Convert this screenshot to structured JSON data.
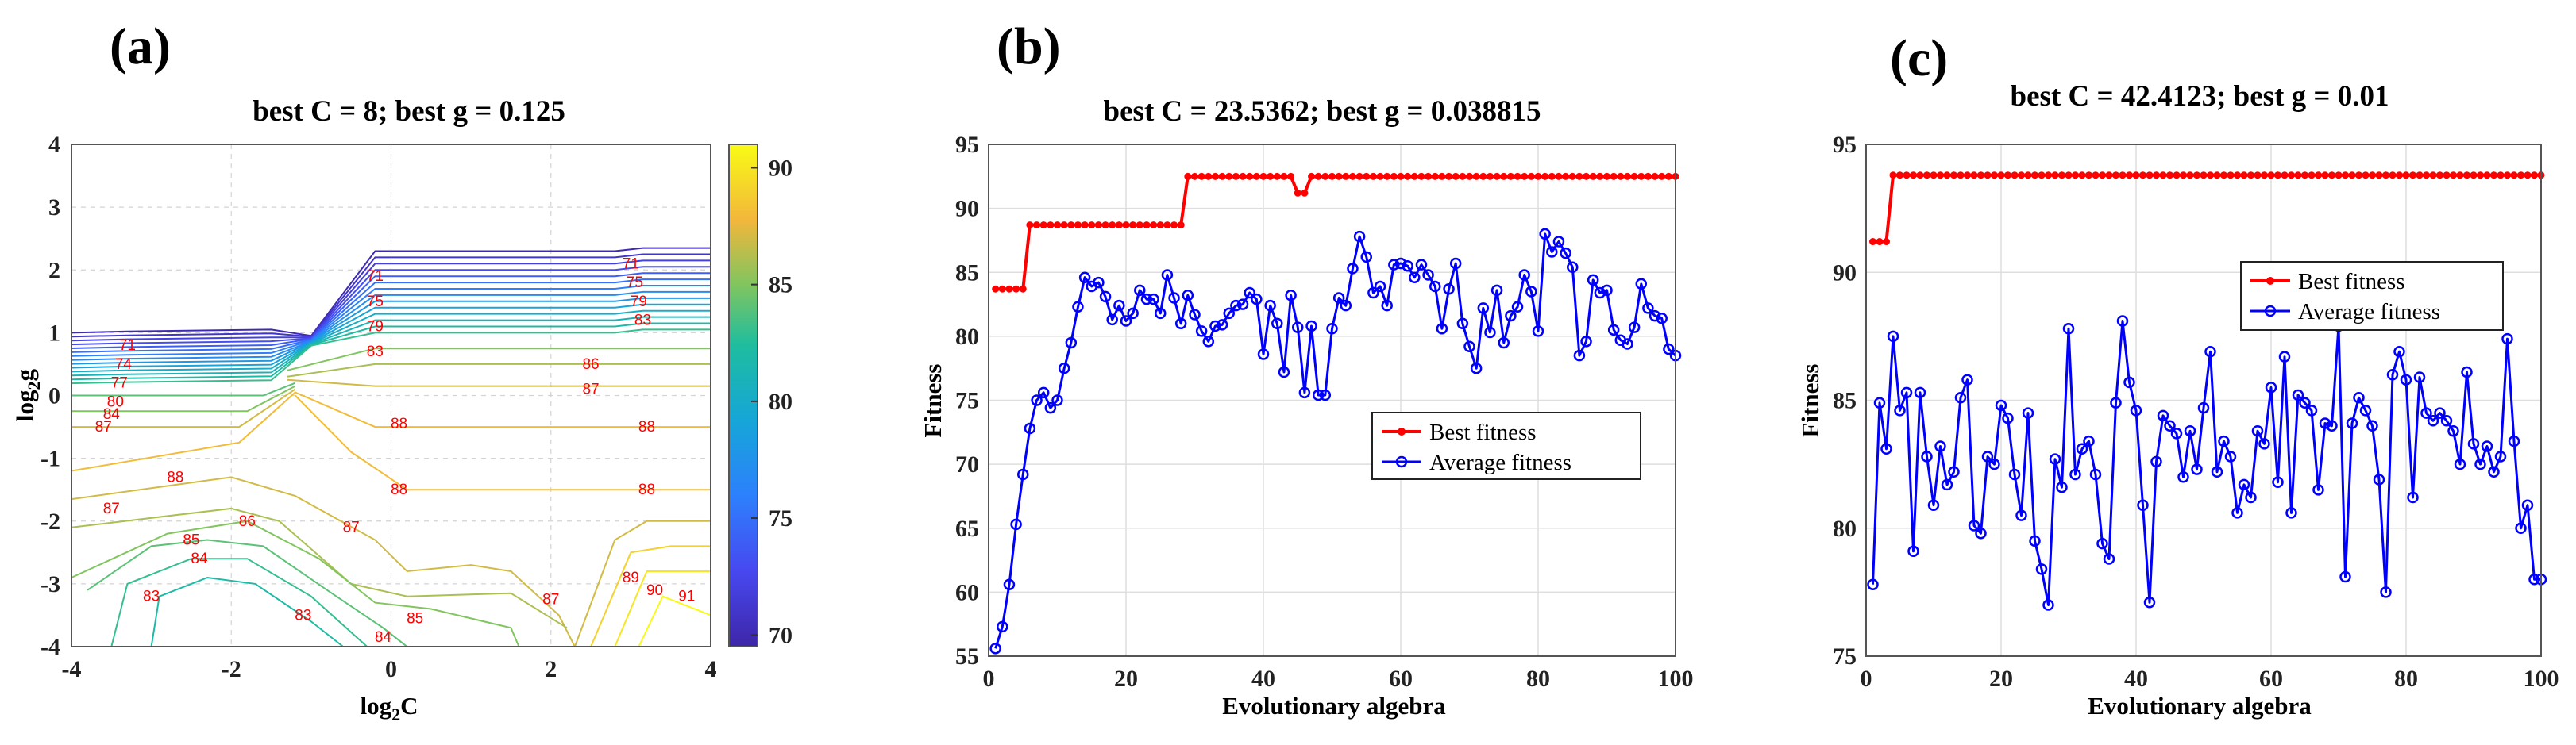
{
  "chart_data": [
    {
      "type": "contour",
      "panel": "(a)",
      "title": "best C = 8; best g = 0.125",
      "xlabel_base": "log",
      "xlabel_sub": "2",
      "xlabel_var": "C",
      "ylabel_base": "log",
      "ylabel_sub": "2",
      "ylabel_var": "g",
      "xlim": [
        -4,
        4
      ],
      "ylim": [
        -4,
        4
      ],
      "xticks": [
        -4,
        -2,
        0,
        2,
        4
      ],
      "yticks": [
        -4,
        -3,
        -2,
        -1,
        0,
        1,
        2,
        3,
        4
      ],
      "colorbar": {
        "range": [
          69.5,
          91
        ],
        "ticks": [
          70,
          75,
          80,
          85,
          90
        ]
      },
      "labeled_levels": [
        {
          "level": 83,
          "x": -3.0,
          "y": -3.2
        },
        {
          "level": 84,
          "x": -2.4,
          "y": -2.6
        },
        {
          "level": 85,
          "x": -2.5,
          "y": -2.3
        },
        {
          "level": 86,
          "x": -1.8,
          "y": -2.0
        },
        {
          "level": 87,
          "x": -3.5,
          "y": -1.8
        },
        {
          "level": 88,
          "x": -2.7,
          "y": -1.3
        },
        {
          "level": 87,
          "x": -3.6,
          "y": -0.5
        },
        {
          "level": 86,
          "x": 2.5,
          "y": 0.5
        },
        {
          "level": 87,
          "x": 2.5,
          "y": 0.1
        },
        {
          "level": 88,
          "x": 0.1,
          "y": -0.45
        },
        {
          "level": 88,
          "x": 3.2,
          "y": -0.5
        },
        {
          "level": 88,
          "x": 0.1,
          "y": -1.5
        },
        {
          "level": 88,
          "x": 3.2,
          "y": -1.5
        },
        {
          "level": 87,
          "x": -0.5,
          "y": -2.1
        },
        {
          "level": 85,
          "x": 0.3,
          "y": -3.55
        },
        {
          "level": 84,
          "x": -0.1,
          "y": -3.85
        },
        {
          "level": 83,
          "x": -1.1,
          "y": -3.5
        },
        {
          "level": 87,
          "x": 2.0,
          "y": -3.25
        },
        {
          "level": 89,
          "x": 3.0,
          "y": -2.9
        },
        {
          "level": 90,
          "x": 3.3,
          "y": -3.1
        },
        {
          "level": 91,
          "x": 3.7,
          "y": -3.2
        },
        {
          "level": 71,
          "x": -3.3,
          "y": 0.8
        },
        {
          "level": 74,
          "x": -3.35,
          "y": 0.5
        },
        {
          "level": 77,
          "x": -3.4,
          "y": 0.2
        },
        {
          "level": 80,
          "x": -3.45,
          "y": -0.1
        },
        {
          "level": 84,
          "x": -3.5,
          "y": -0.3
        },
        {
          "level": 71,
          "x": -0.2,
          "y": 1.9
        },
        {
          "level": 75,
          "x": -0.2,
          "y": 1.5
        },
        {
          "level": 79,
          "x": -0.2,
          "y": 1.1
        },
        {
          "level": 83,
          "x": -0.2,
          "y": 0.7
        },
        {
          "level": 71,
          "x": 3.0,
          "y": 2.1
        },
        {
          "level": 75,
          "x": 3.05,
          "y": 1.8
        },
        {
          "level": 79,
          "x": 3.1,
          "y": 1.5
        },
        {
          "level": 83,
          "x": 3.15,
          "y": 1.2
        }
      ]
    },
    {
      "type": "line",
      "panel": "(b)",
      "title": "best C = 23.5362; best g = 0.038815",
      "xlabel": "Evolutionary algebra",
      "ylabel": "Fitness",
      "xlim": [
        0,
        100
      ],
      "ylim": [
        55,
        95
      ],
      "xticks": [
        0,
        20,
        40,
        60,
        80,
        100
      ],
      "yticks": [
        55,
        60,
        65,
        70,
        75,
        80,
        85,
        90,
        95
      ],
      "legend": {
        "position": "right",
        "entries": [
          "Best fitness",
          "Average fitness"
        ]
      },
      "series": [
        {
          "name": "Best fitness",
          "color": "#ff0000",
          "marker": "dot",
          "x": [
            1,
            2,
            3,
            4,
            5,
            6,
            7,
            8,
            9,
            10,
            11,
            12,
            13,
            14,
            15,
            16,
            17,
            18,
            19,
            20,
            21,
            22,
            23,
            24,
            25,
            26,
            27,
            28,
            29,
            30,
            31,
            32,
            33,
            34,
            35,
            36,
            37,
            38,
            39,
            40,
            41,
            42,
            43,
            44,
            45,
            46,
            47,
            48,
            49,
            50,
            51,
            52,
            53,
            54,
            55,
            56,
            57,
            58,
            59,
            60,
            61,
            62,
            63,
            64,
            65,
            66,
            67,
            68,
            69,
            70,
            71,
            72,
            73,
            74,
            75,
            76,
            77,
            78,
            79,
            80,
            81,
            82,
            83,
            84,
            85,
            86,
            87,
            88,
            89,
            90,
            91,
            92,
            93,
            94,
            95,
            96,
            97,
            98,
            99,
            100
          ],
          "values": [
            83.7,
            83.7,
            83.7,
            83.7,
            83.7,
            88.7,
            88.7,
            88.7,
            88.7,
            88.7,
            88.7,
            88.7,
            88.7,
            88.7,
            88.7,
            88.7,
            88.7,
            88.7,
            88.7,
            88.7,
            88.7,
            88.7,
            88.7,
            88.7,
            88.7,
            88.7,
            88.7,
            88.7,
            92.5,
            92.5,
            92.5,
            92.5,
            92.5,
            92.5,
            92.5,
            92.5,
            92.5,
            92.5,
            92.5,
            92.5,
            92.5,
            92.5,
            92.5,
            92.5,
            91.2,
            91.2,
            92.5,
            92.5,
            92.5,
            92.5,
            92.5,
            92.5,
            92.5,
            92.5,
            92.5,
            92.5,
            92.5,
            92.5,
            92.5,
            92.5,
            92.5,
            92.5,
            92.5,
            92.5,
            92.5,
            92.5,
            92.5,
            92.5,
            92.5,
            92.5,
            92.5,
            92.5,
            92.5,
            92.5,
            92.5,
            92.5,
            92.5,
            92.5,
            92.5,
            92.5,
            92.5,
            92.5,
            92.5,
            92.5,
            92.5,
            92.5,
            92.5,
            92.5,
            92.5,
            92.5,
            92.5,
            92.5,
            92.5,
            92.5,
            92.5,
            92.5,
            92.5,
            92.5,
            92.5,
            92.5
          ]
        },
        {
          "name": "Average fitness",
          "color": "#0000ff",
          "marker": "circle",
          "x": [
            1,
            2,
            3,
            4,
            5,
            6,
            7,
            8,
            9,
            10,
            11,
            12,
            13,
            14,
            15,
            16,
            17,
            18,
            19,
            20,
            21,
            22,
            23,
            24,
            25,
            26,
            27,
            28,
            29,
            30,
            31,
            32,
            33,
            34,
            35,
            36,
            37,
            38,
            39,
            40,
            41,
            42,
            43,
            44,
            45,
            46,
            47,
            48,
            49,
            50,
            51,
            52,
            53,
            54,
            55,
            56,
            57,
            58,
            59,
            60,
            61,
            62,
            63,
            64,
            65,
            66,
            67,
            68,
            69,
            70,
            71,
            72,
            73,
            74,
            75,
            76,
            77,
            78,
            79,
            80,
            81,
            82,
            83,
            84,
            85,
            86,
            87,
            88,
            89,
            90,
            91,
            92,
            93,
            94,
            95,
            96,
            97,
            98,
            99,
            100
          ],
          "values": [
            55.6,
            57.3,
            60.6,
            65.3,
            69.2,
            72.8,
            75.0,
            75.6,
            74.4,
            75.0,
            77.5,
            79.5,
            82.3,
            84.6,
            83.9,
            84.2,
            83.1,
            81.3,
            82.4,
            81.2,
            81.8,
            83.6,
            82.9,
            82.9,
            81.8,
            84.8,
            83.0,
            81.0,
            83.2,
            81.7,
            80.4,
            79.6,
            80.8,
            80.9,
            81.8,
            82.4,
            82.5,
            83.4,
            82.9,
            78.6,
            82.4,
            81.0,
            77.2,
            83.2,
            80.7,
            75.6,
            80.8,
            75.4,
            75.4,
            80.6,
            83.0,
            82.4,
            85.3,
            87.8,
            86.2,
            83.4,
            83.9,
            82.4,
            85.6,
            85.7,
            85.5,
            84.6,
            85.6,
            84.8,
            83.9,
            80.6,
            83.7,
            85.7,
            81.0,
            79.2,
            77.5,
            82.2,
            80.3,
            83.6,
            79.5,
            81.6,
            82.3,
            84.8,
            83.5,
            80.4,
            88.0,
            86.6,
            87.4,
            86.5,
            85.4,
            78.5,
            79.6,
            84.4,
            83.4,
            83.6,
            80.5,
            79.7,
            79.4,
            80.7,
            84.1,
            82.2,
            81.6,
            81.4,
            79.0,
            78.5
          ]
        }
      ]
    },
    {
      "type": "line",
      "panel": "(c)",
      "title": "best C = 42.4123; best g = 0.01",
      "xlabel": "Evolutionary algebra",
      "ylabel": "Fitness",
      "xlim": [
        0,
        100
      ],
      "ylim": [
        75,
        95
      ],
      "xticks": [
        0,
        20,
        40,
        60,
        80,
        100
      ],
      "yticks": [
        75,
        80,
        85,
        90,
        95
      ],
      "legend": {
        "position": "center",
        "entries": [
          "Best fitness",
          "Average fitness"
        ]
      },
      "series": [
        {
          "name": "Best fitness",
          "color": "#ff0000",
          "marker": "dot",
          "x": [
            1,
            2,
            3,
            4,
            5,
            6,
            7,
            8,
            9,
            10,
            11,
            12,
            13,
            14,
            15,
            16,
            17,
            18,
            19,
            20,
            21,
            22,
            23,
            24,
            25,
            26,
            27,
            28,
            29,
            30,
            31,
            32,
            33,
            34,
            35,
            36,
            37,
            38,
            39,
            40,
            41,
            42,
            43,
            44,
            45,
            46,
            47,
            48,
            49,
            50,
            51,
            52,
            53,
            54,
            55,
            56,
            57,
            58,
            59,
            60,
            61,
            62,
            63,
            64,
            65,
            66,
            67,
            68,
            69,
            70,
            71,
            72,
            73,
            74,
            75,
            76,
            77,
            78,
            79,
            80,
            81,
            82,
            83,
            84,
            85,
            86,
            87,
            88,
            89,
            90,
            91,
            92,
            93,
            94,
            95,
            96,
            97,
            98,
            99,
            100
          ],
          "values": [
            91.2,
            91.2,
            91.2,
            93.8,
            93.8,
            93.8,
            93.8,
            93.8,
            93.8,
            93.8,
            93.8,
            93.8,
            93.8,
            93.8,
            93.8,
            93.8,
            93.8,
            93.8,
            93.8,
            93.8,
            93.8,
            93.8,
            93.8,
            93.8,
            93.8,
            93.8,
            93.8,
            93.8,
            93.8,
            93.8,
            93.8,
            93.8,
            93.8,
            93.8,
            93.8,
            93.8,
            93.8,
            93.8,
            93.8,
            93.8,
            93.8,
            93.8,
            93.8,
            93.8,
            93.8,
            93.8,
            93.8,
            93.8,
            93.8,
            93.8,
            93.8,
            93.8,
            93.8,
            93.8,
            93.8,
            93.8,
            93.8,
            93.8,
            93.8,
            93.8,
            93.8,
            93.8,
            93.8,
            93.8,
            93.8,
            93.8,
            93.8,
            93.8,
            93.8,
            93.8,
            93.8,
            93.8,
            93.8,
            93.8,
            93.8,
            93.8,
            93.8,
            93.8,
            93.8,
            93.8,
            93.8,
            93.8,
            93.8,
            93.8,
            93.8,
            93.8,
            93.8,
            93.8,
            93.8,
            93.8,
            93.8,
            93.8,
            93.8,
            93.8,
            93.8,
            93.8,
            93.8,
            93.8,
            93.8,
            93.8
          ]
        },
        {
          "name": "Average fitness",
          "color": "#0000ff",
          "marker": "circle",
          "x": [
            1,
            2,
            3,
            4,
            5,
            6,
            7,
            8,
            9,
            10,
            11,
            12,
            13,
            14,
            15,
            16,
            17,
            18,
            19,
            20,
            21,
            22,
            23,
            24,
            25,
            26,
            27,
            28,
            29,
            30,
            31,
            32,
            33,
            34,
            35,
            36,
            37,
            38,
            39,
            40,
            41,
            42,
            43,
            44,
            45,
            46,
            47,
            48,
            49,
            50,
            51,
            52,
            53,
            54,
            55,
            56,
            57,
            58,
            59,
            60,
            61,
            62,
            63,
            64,
            65,
            66,
            67,
            68,
            69,
            70,
            71,
            72,
            73,
            74,
            75,
            76,
            77,
            78,
            79,
            80,
            81,
            82,
            83,
            84,
            85,
            86,
            87,
            88,
            89,
            90,
            91,
            92,
            93,
            94,
            95,
            96,
            97,
            98,
            99,
            100
          ],
          "values": [
            77.8,
            84.9,
            83.1,
            87.5,
            84.6,
            85.3,
            79.1,
            85.3,
            82.8,
            80.9,
            83.2,
            81.7,
            82.2,
            85.1,
            85.8,
            80.1,
            79.8,
            82.8,
            82.5,
            84.8,
            84.3,
            82.1,
            80.5,
            84.5,
            79.5,
            78.4,
            77.0,
            82.7,
            81.6,
            87.8,
            82.1,
            83.1,
            83.4,
            82.1,
            79.4,
            78.8,
            84.9,
            88.1,
            85.7,
            84.6,
            80.9,
            77.1,
            82.6,
            84.4,
            84.0,
            83.7,
            82.0,
            83.8,
            82.3,
            84.7,
            86.9,
            82.2,
            83.4,
            82.8,
            80.6,
            81.7,
            81.2,
            83.8,
            83.3,
            85.5,
            81.8,
            86.7,
            80.6,
            85.2,
            84.9,
            84.6,
            81.5,
            84.1,
            84.0,
            87.9,
            78.1,
            84.1,
            85.1,
            84.6,
            84.0,
            81.9,
            77.5,
            86.0,
            86.9,
            85.8,
            81.2,
            85.9,
            84.5,
            84.2,
            84.5,
            84.2,
            83.8,
            82.5,
            86.1,
            83.3,
            82.5,
            83.2,
            82.2,
            82.8,
            87.4,
            83.4,
            80.0,
            80.9,
            78.0,
            78.0
          ]
        }
      ]
    }
  ]
}
